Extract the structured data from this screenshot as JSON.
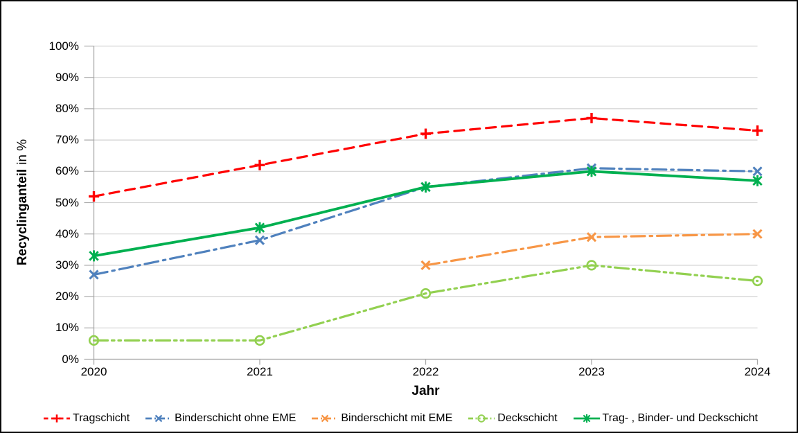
{
  "chart_data": {
    "type": "line",
    "title": "",
    "xlabel": "Jahr",
    "ylabel": "Recyclinganteil in %",
    "ylabel_bold": "Recyclinganteil",
    "ylabel_rest": "in %",
    "x_tick_labels": [
      "2020",
      "2021",
      "2022",
      "2023",
      "2024"
    ],
    "y_tick_labels": [
      "0%",
      "10%",
      "20%",
      "30%",
      "40%",
      "50%",
      "60%",
      "70%",
      "80%",
      "90%",
      "100%"
    ],
    "ylim": [
      0,
      100
    ],
    "grid": "horizontal-major",
    "legend_position": "bottom",
    "grid_color": "#D2D2D2",
    "axis_color": "#A9A9A9",
    "text_color": "#000000",
    "series": [
      {
        "name": "Tragschicht",
        "color": "#FF0000",
        "line_style": "dash",
        "marker": "plus",
        "values": [
          52,
          62,
          72,
          77,
          73
        ]
      },
      {
        "name": "Binderschicht ohne EME",
        "color": "#4F81BD",
        "line_style": "dash-dot",
        "marker": "x",
        "values": [
          27,
          38,
          55,
          61,
          60
        ]
      },
      {
        "name": "Binderschicht mit EME",
        "color": "#F79646",
        "line_style": "dash-dot",
        "marker": "x",
        "values": [
          null,
          null,
          30,
          39,
          40
        ]
      },
      {
        "name": "Deckschicht",
        "color": "#92D050",
        "line_style": "dash-dot-dot",
        "marker": "circle",
        "values": [
          6,
          6,
          21,
          30,
          25
        ]
      },
      {
        "name": "Trag- , Binder- und Deckschicht",
        "color": "#00B050",
        "line_style": "solid",
        "marker": "asterisk",
        "values": [
          33,
          42,
          55,
          60,
          57
        ]
      }
    ]
  }
}
